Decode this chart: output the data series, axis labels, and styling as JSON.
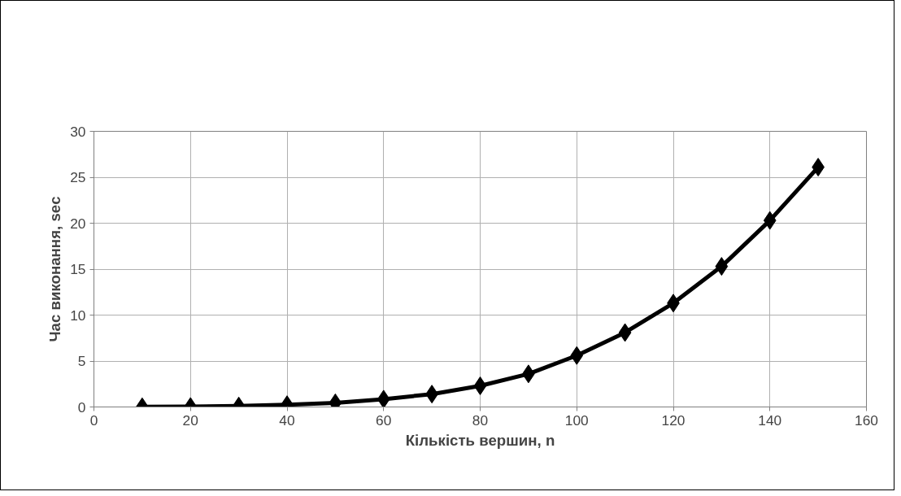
{
  "chart_data": {
    "type": "line",
    "xlabel": "Кількість вершин, n",
    "ylabel": "Час виконання, sec",
    "x": [
      10,
      20,
      30,
      40,
      50,
      60,
      70,
      80,
      90,
      100,
      110,
      120,
      130,
      140,
      150
    ],
    "series": [
      {
        "color": "#000000",
        "values": [
          0.02,
          0.05,
          0.1,
          0.25,
          0.45,
          0.85,
          1.4,
          2.3,
          3.6,
          5.6,
          8.1,
          11.3,
          15.3,
          20.3,
          26.1
        ]
      }
    ],
    "xlim": [
      0,
      160
    ],
    "xticks": [
      0,
      20,
      40,
      60,
      80,
      100,
      120,
      140,
      160
    ],
    "ylim": [
      0,
      30
    ],
    "yticks": [
      0,
      5,
      10,
      15,
      20,
      25,
      30
    ],
    "grid": true,
    "marker": "diamond",
    "line_style": "solid"
  }
}
